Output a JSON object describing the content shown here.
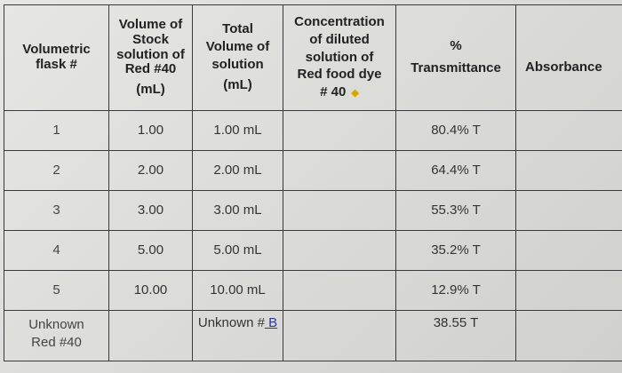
{
  "headers": {
    "flask": [
      "Volumetric",
      "flask #"
    ],
    "stock": [
      "Volume of",
      "Stock",
      "solution of",
      "Red #40",
      "(mL)"
    ],
    "total": [
      "Total",
      "Volume of",
      "solution",
      "(mL)"
    ],
    "concentration": [
      "Concentration",
      "of diluted",
      "solution of",
      "Red food dye",
      "# 40"
    ],
    "transmittance": [
      "%",
      "Transmittance"
    ],
    "absorbance": "Absorbance"
  },
  "rows": [
    {
      "flask": "1",
      "stock": "1.00",
      "total": "1.00 mL",
      "concentration": "",
      "transmittance": "80.4% T",
      "absorbance": ""
    },
    {
      "flask": "2",
      "stock": "2.00",
      "total": "2.00 mL",
      "concentration": "",
      "transmittance": "64.4% T",
      "absorbance": ""
    },
    {
      "flask": "3",
      "stock": "3.00",
      "total": "3.00 mL",
      "concentration": "",
      "transmittance": "55.3% T",
      "absorbance": ""
    },
    {
      "flask": "4",
      "stock": "5.00",
      "total": "5.00 mL",
      "concentration": "",
      "transmittance": "35.2% T",
      "absorbance": ""
    },
    {
      "flask": "5",
      "stock": "10.00",
      "total": "10.00 mL",
      "concentration": "",
      "transmittance": "12.9% T",
      "absorbance": ""
    }
  ],
  "unknown": {
    "flask": [
      "Unknown",
      "Red #40"
    ],
    "total_prefix": "Unknown #",
    "total_id": " B",
    "transmittance": "38.55 T"
  }
}
